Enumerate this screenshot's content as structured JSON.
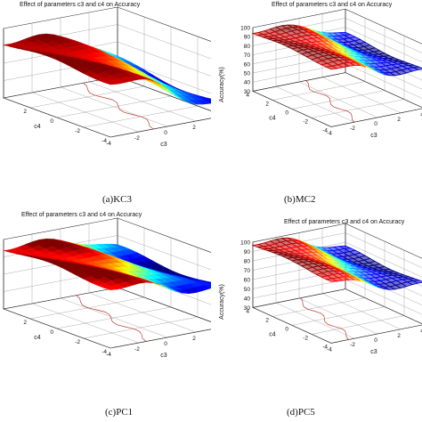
{
  "chart_data": [
    {
      "type": "surface3d",
      "panel": "a",
      "title": "Effect of parameters c3 and c4 on Accuracy",
      "caption": "(a)KC3",
      "xlabel": "c3",
      "ylabel": "c4",
      "zlabel": "",
      "x_ticks": [
        "-4",
        "-2",
        "0",
        "2",
        "4"
      ],
      "y_ticks": [
        "-4",
        "-2",
        "0",
        "2"
      ],
      "z_ticks": [],
      "xlim": [
        -4,
        4
      ],
      "ylim": [
        -4,
        4
      ],
      "zlim": [
        30,
        100
      ],
      "z_visible": [
        60,
        100
      ],
      "surface": {
        "high": 92,
        "low": 65,
        "ridge_c3": 1.5,
        "slope": 0.9,
        "style": "filled"
      }
    },
    {
      "type": "surface3d",
      "panel": "b",
      "title": "Effect of parameters c3 and c4 on Accuracy",
      "caption": "(b)MC2",
      "xlabel": "c3",
      "ylabel": "c4",
      "zlabel": "Accuracy(%)",
      "x_ticks": [
        "-4",
        "-2",
        "0",
        "2",
        "4"
      ],
      "y_ticks": [
        "-4",
        "-2",
        "0",
        "2",
        "4"
      ],
      "z_ticks": [
        "30",
        "40",
        "50",
        "60",
        "70",
        "80",
        "90",
        "100"
      ],
      "xlim": [
        -4,
        4
      ],
      "ylim": [
        -4,
        4
      ],
      "zlim": [
        30,
        100
      ],
      "z_visible": [
        30,
        100
      ],
      "surface": {
        "high": 95,
        "low": 72,
        "ridge_c3": 0.5,
        "slope": 1.2,
        "style": "mesh"
      }
    },
    {
      "type": "surface3d",
      "panel": "c",
      "title": "Effect of parameters c3 and c4 on Accuracy",
      "caption": "(c)PC1",
      "xlabel": "c3",
      "ylabel": "c4",
      "zlabel": "",
      "x_ticks": [
        "-4",
        "-2",
        "0",
        "2",
        "4"
      ],
      "y_ticks": [
        "-4",
        "-2",
        "0",
        "2"
      ],
      "z_ticks": [],
      "xlim": [
        -4,
        4
      ],
      "ylim": [
        -4,
        4
      ],
      "zlim": [
        30,
        100
      ],
      "z_visible": [
        60,
        100
      ],
      "surface": {
        "high": 95,
        "low": 82,
        "ridge_c3": 1.0,
        "slope": 1.0,
        "style": "filled"
      }
    },
    {
      "type": "surface3d",
      "panel": "d",
      "title": "Effect of parameters c3 and c4 on Accuracy",
      "caption": "(d)PC5",
      "xlabel": "c3",
      "ylabel": "c4",
      "zlabel": "Accuracy(%)",
      "x_ticks": [
        "-4",
        "-2",
        "0",
        "2",
        "4"
      ],
      "y_ticks": [
        "-4",
        "-2",
        "0",
        "2",
        "4"
      ],
      "z_ticks": [
        "30",
        "40",
        "50",
        "60",
        "70",
        "80",
        "90",
        "100"
      ],
      "xlim": [
        -4,
        4
      ],
      "ylim": [
        -4,
        4
      ],
      "zlim": [
        30,
        100
      ],
      "z_visible": [
        30,
        100
      ],
      "surface": {
        "high": 98,
        "low": 74,
        "ridge_c3": 0.0,
        "slope": 1.1,
        "style": "mesh"
      }
    }
  ]
}
